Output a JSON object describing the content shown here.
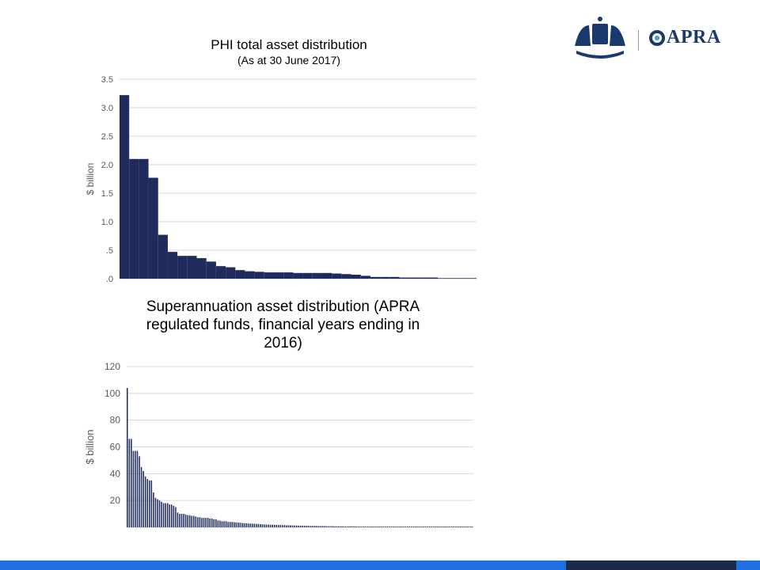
{
  "logo": {
    "wordmark": "APRA",
    "crest_icon": "coat-of-arms-icon",
    "brand_color": "#1a3a6e"
  },
  "footer": {
    "light_color": "#1f6fe0",
    "dark_color": "#1a2a4a"
  },
  "chart_data": [
    {
      "type": "bar",
      "title": "PHI total asset distribution",
      "subtitle": "(As at 30 June 2017)",
      "xlabel": "",
      "ylabel": "$ billion",
      "ylim": [
        0,
        3.5
      ],
      "yticks": [
        0,
        0.5,
        1.0,
        1.5,
        2.0,
        2.5,
        3.0,
        3.5
      ],
      "ytick_labels": [
        ".0",
        ".5",
        "1.0",
        "1.5",
        "2.0",
        "2.5",
        "3.0",
        "3.5"
      ],
      "grid": true,
      "bar_color": "#1f2b5c",
      "values": [
        3.22,
        2.1,
        2.1,
        1.77,
        0.77,
        0.47,
        0.4,
        0.4,
        0.36,
        0.3,
        0.22,
        0.2,
        0.15,
        0.13,
        0.12,
        0.11,
        0.11,
        0.11,
        0.1,
        0.1,
        0.1,
        0.1,
        0.09,
        0.08,
        0.07,
        0.05,
        0.03,
        0.03,
        0.03,
        0.02,
        0.02,
        0.02,
        0.02,
        0.01,
        0.01,
        0.01,
        0.01
      ]
    },
    {
      "type": "bar",
      "title": "Superannuation asset distribution (APRA regulated funds, financial years ending in 2016)",
      "xlabel": "",
      "ylabel": "$ billion",
      "ylim": [
        0,
        120
      ],
      "yticks": [
        20,
        40,
        60,
        80,
        100,
        120
      ],
      "ytick_labels": [
        "20",
        "40",
        "60",
        "80",
        "100",
        "120"
      ],
      "grid": true,
      "bar_color": "#1f2b5c",
      "values": [
        104,
        66,
        66,
        57,
        57,
        57,
        53,
        45,
        42,
        38,
        36,
        35,
        35,
        26,
        22,
        21,
        20,
        19,
        18,
        18,
        18,
        17,
        17,
        16,
        15,
        11,
        10,
        10,
        10,
        9.5,
        9,
        9,
        8.5,
        8.5,
        8,
        7.5,
        7.5,
        7,
        7,
        7,
        7,
        6.5,
        6.5,
        6,
        6,
        5,
        5,
        4.5,
        4.5,
        4.5,
        4,
        4,
        4,
        3.8,
        3.6,
        3.5,
        3.4,
        3.2,
        3,
        3,
        2.8,
        2.8,
        2.7,
        2.6,
        2.5,
        2.4,
        2.3,
        2.2,
        2.1,
        2,
        2,
        1.9,
        1.9,
        1.8,
        1.8,
        1.7,
        1.7,
        1.6,
        1.6,
        1.5,
        1.5,
        1.4,
        1.4,
        1.3,
        1.3,
        1.2,
        1.2,
        1.2,
        1.1,
        1.1,
        1.1,
        1,
        1,
        1,
        1,
        0.9,
        0.9,
        0.9,
        0.9,
        0.8,
        0.8,
        0.8,
        0.8,
        0.7,
        0.7,
        0.7,
        0.7,
        0.7,
        0.6,
        0.6,
        0.6,
        0.6,
        0.6,
        0.6,
        0.5,
        0.5,
        0.5,
        0.5,
        0.5,
        0.5,
        0.5,
        0.5,
        0.5,
        0.5,
        0.5,
        0.5,
        0.5,
        0.5,
        0.5,
        0.5,
        0.5,
        0.5,
        0.5,
        0.5,
        0.5,
        0.5,
        0.5,
        0.5,
        0.5,
        0.5,
        0.5,
        0.5,
        0.5,
        0.5,
        0.5,
        0.5,
        0.5,
        0.5,
        0.5,
        0.5,
        0.5,
        0.5,
        0.5,
        0.5,
        0.5,
        0.5,
        0.5,
        0.5,
        0.5,
        0.5,
        0.5,
        0.5,
        0.5,
        0.5,
        0.5,
        0.5,
        0.5,
        0.5,
        0.5,
        0.5,
        0.5,
        0.5
      ]
    }
  ]
}
